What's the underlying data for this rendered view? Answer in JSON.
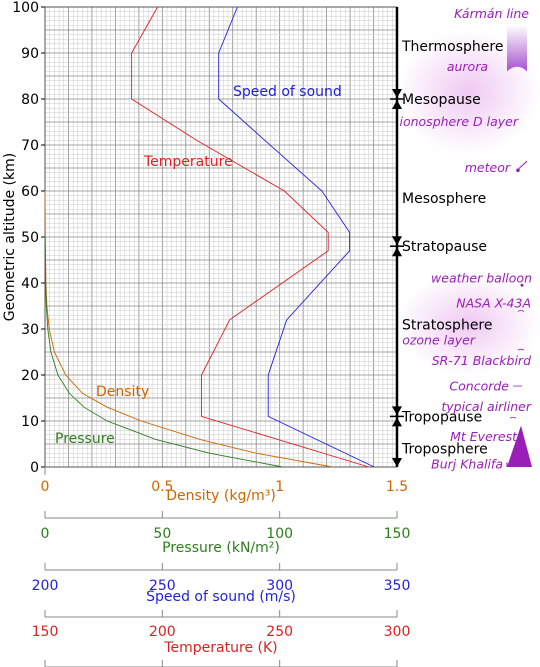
{
  "chart_data": {
    "type": "line",
    "ylabel": "Geometric altitude (km)",
    "ylim": [
      0,
      100
    ],
    "yticks": [
      "0",
      "10",
      "20",
      "30",
      "40",
      "50",
      "60",
      "70",
      "80",
      "90",
      "100"
    ],
    "grid": true,
    "series": [
      {
        "name": "Temperature",
        "axis": "temperature",
        "color": "#dd2222",
        "points": [
          [
            288,
            0
          ],
          [
            216.7,
            11
          ],
          [
            216.7,
            20
          ],
          [
            228.7,
            32
          ],
          [
            270.7,
            47
          ],
          [
            270.7,
            51
          ],
          [
            252,
            60
          ],
          [
            214.7,
            71
          ],
          [
            186.9,
            80
          ],
          [
            186.9,
            90
          ],
          [
            198,
            100
          ]
        ]
      },
      {
        "name": "Speed of sound",
        "axis": "speed",
        "color": "#2222dd",
        "points": [
          [
            340.3,
            0
          ],
          [
            295.1,
            11
          ],
          [
            295.1,
            20
          ],
          [
            303,
            32
          ],
          [
            329.8,
            47
          ],
          [
            329.8,
            51
          ],
          [
            318,
            60
          ],
          [
            293.7,
            71
          ],
          [
            274,
            80
          ],
          [
            274,
            90
          ],
          [
            282,
            100
          ]
        ]
      },
      {
        "name": "Density",
        "axis": "density",
        "color": "#cc6600",
        "points": [
          [
            1.225,
            0
          ],
          [
            0.9,
            3
          ],
          [
            0.66,
            6
          ],
          [
            0.41,
            10
          ],
          [
            0.265,
            13
          ],
          [
            0.16,
            16
          ],
          [
            0.088,
            20
          ],
          [
            0.04,
            25
          ],
          [
            0.018,
            30
          ],
          [
            0.0082,
            35
          ],
          [
            0.004,
            40
          ],
          [
            0.0014,
            50
          ],
          [
            0,
            60
          ]
        ]
      },
      {
        "name": "Pressure",
        "axis": "pressure",
        "color": "#2e7d1e",
        "points": [
          [
            101.3,
            0
          ],
          [
            70.1,
            3
          ],
          [
            47.2,
            6
          ],
          [
            26.5,
            10
          ],
          [
            16.6,
            13
          ],
          [
            10.4,
            16
          ],
          [
            5.5,
            20
          ],
          [
            2.5,
            25
          ],
          [
            1.2,
            30
          ],
          [
            0.57,
            35
          ],
          [
            0.29,
            40
          ],
          [
            0,
            50
          ]
        ]
      }
    ],
    "x_axes": [
      {
        "key": "density",
        "title": "Density (kg/m³)",
        "color": "#cc6600",
        "min": 0,
        "max": 1.5,
        "ticks": [
          {
            "v": 0,
            "label": "0"
          },
          {
            "v": 0.5,
            "label": "0.5"
          },
          {
            "v": 1,
            "label": "1"
          },
          {
            "v": 1.5,
            "label": "1.5"
          }
        ]
      },
      {
        "key": "pressure",
        "title": "Pressure (kN/m²)",
        "color": "#2e7d1e",
        "min": 0,
        "max": 150,
        "ticks": [
          {
            "v": 0,
            "label": "0"
          },
          {
            "v": 50,
            "label": "50"
          },
          {
            "v": 100,
            "label": "100"
          },
          {
            "v": 150,
            "label": "150"
          }
        ]
      },
      {
        "key": "speed",
        "title": "Speed of sound (m/s)",
        "color": "#2222dd",
        "min": 200,
        "max": 350,
        "ticks": [
          {
            "v": 200,
            "label": "200"
          },
          {
            "v": 250,
            "label": "250"
          },
          {
            "v": 300,
            "label": "300"
          },
          {
            "v": 350,
            "label": "350"
          }
        ]
      },
      {
        "key": "temperature",
        "title": "Temperature (K)",
        "color": "#dd2222",
        "min": 150,
        "max": 300,
        "ticks": [
          {
            "v": 150,
            "label": "150"
          },
          {
            "v": 200,
            "label": "200"
          },
          {
            "v": 250,
            "label": "250"
          },
          {
            "v": 300,
            "label": "300"
          }
        ]
      }
    ],
    "layers": [
      {
        "name": "Thermosphere",
        "alt": 91.5
      },
      {
        "name": "Mesopause",
        "alt": 80
      },
      {
        "name": "Mesosphere",
        "alt": 58.5
      },
      {
        "name": "Stratopause",
        "alt": 48
      },
      {
        "name": "Stratosphere",
        "alt": 31
      },
      {
        "name": "Tropopause",
        "alt": 11
      },
      {
        "name": "Troposphere",
        "alt": 4
      }
    ],
    "boundaries": [
      80,
      48,
      11
    ],
    "features": [
      {
        "name": "Kármán line",
        "alt": 100,
        "icon": "karman-line-icon"
      },
      {
        "name": "aurora",
        "alt": 87,
        "icon": "aurora-icon"
      },
      {
        "name": "ionosphere D layer",
        "alt": 75,
        "icon": "ionosphere-band-icon"
      },
      {
        "name": "meteor",
        "alt": 65,
        "icon": "meteor-icon"
      },
      {
        "name": "weather balloon",
        "alt": 41,
        "icon": "balloon-icon"
      },
      {
        "name": "NASA X-43A",
        "alt": 35.5,
        "icon": "x43a-icon"
      },
      {
        "name": "ozone layer",
        "alt": 27.5,
        "icon": "ozone-band-icon"
      },
      {
        "name": "SR-71 Blackbird",
        "alt": 23,
        "icon": "sr71-icon"
      },
      {
        "name": "Concorde",
        "alt": 17.5,
        "icon": "concorde-icon"
      },
      {
        "name": "typical airliner",
        "alt": 13,
        "icon": "airliner-icon"
      },
      {
        "name": "Mt Everest",
        "alt": 6.5,
        "icon": "mountain-icon"
      },
      {
        "name": "Burj Khalifa",
        "alt": 0.5,
        "icon": "tower-icon"
      }
    ]
  }
}
